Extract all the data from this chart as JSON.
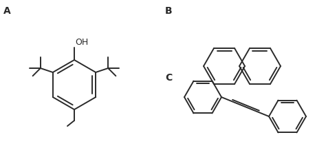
{
  "bg_color": "#ffffff",
  "line_color": "#2a2a2a",
  "line_width": 1.4,
  "label_A": "A",
  "label_B": "B",
  "label_C": "C",
  "label_OH": "OH",
  "font_size_label": 10,
  "font_size_oh": 9
}
